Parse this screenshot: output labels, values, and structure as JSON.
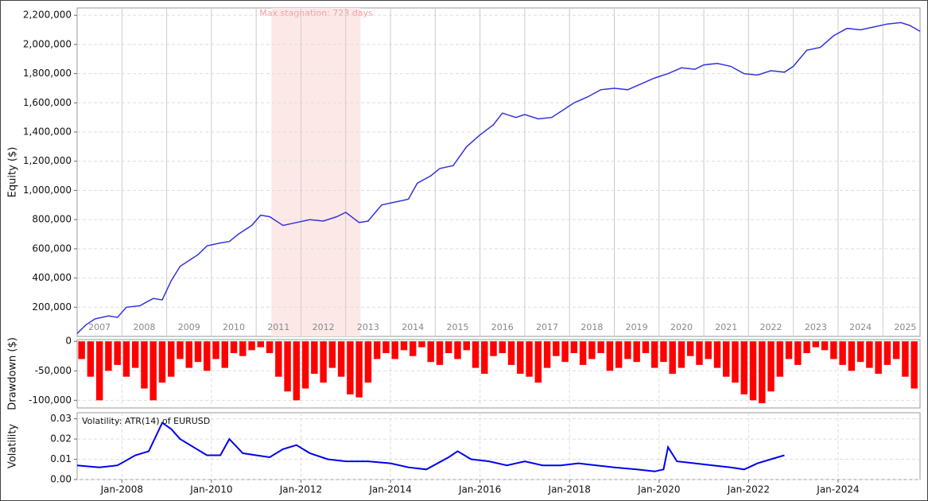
{
  "chart_data": [
    {
      "type": "line",
      "y_label": "Equity ($)",
      "x": [
        2007.0,
        2007.2,
        2007.4,
        2007.7,
        2007.9,
        2008.1,
        2008.4,
        2008.7,
        2008.9,
        2009.1,
        2009.3,
        2009.5,
        2009.7,
        2009.9,
        2010.2,
        2010.4,
        2010.6,
        2010.9,
        2011.1,
        2011.3,
        2011.6,
        2011.9,
        2012.2,
        2012.5,
        2012.8,
        2013.0,
        2013.3,
        2013.5,
        2013.8,
        2014.1,
        2014.4,
        2014.6,
        2014.9,
        2015.1,
        2015.4,
        2015.7,
        2016.0,
        2016.3,
        2016.5,
        2016.8,
        2017.0,
        2017.3,
        2017.6,
        2017.9,
        2018.1,
        2018.4,
        2018.7,
        2019.0,
        2019.3,
        2019.6,
        2019.9,
        2020.2,
        2020.5,
        2020.8,
        2021.0,
        2021.3,
        2021.6,
        2021.9,
        2022.2,
        2022.5,
        2022.8,
        2023.0,
        2023.3,
        2023.6,
        2023.9,
        2024.2,
        2024.5,
        2024.8,
        2025.1,
        2025.4,
        2025.6,
        2025.83
      ],
      "series": [
        {
          "name": "Equity",
          "color": "#3333dd",
          "values": [
            20000,
            80000,
            120000,
            140000,
            130000,
            200000,
            210000,
            260000,
            250000,
            380000,
            480000,
            520000,
            560000,
            620000,
            640000,
            650000,
            700000,
            760000,
            830000,
            820000,
            760000,
            780000,
            800000,
            790000,
            820000,
            850000,
            780000,
            790000,
            900000,
            920000,
            940000,
            1050000,
            1100000,
            1150000,
            1170000,
            1300000,
            1380000,
            1450000,
            1530000,
            1500000,
            1520000,
            1490000,
            1500000,
            1560000,
            1600000,
            1640000,
            1690000,
            1700000,
            1690000,
            1730000,
            1770000,
            1800000,
            1840000,
            1830000,
            1860000,
            1870000,
            1850000,
            1800000,
            1790000,
            1820000,
            1810000,
            1850000,
            1960000,
            1980000,
            2060000,
            2110000,
            2100000,
            2120000,
            2140000,
            2150000,
            2130000,
            2090000
          ]
        }
      ],
      "xlim": [
        2007.0,
        2025.83
      ],
      "xticks": [
        {
          "value": 2007,
          "label": "2007"
        },
        {
          "value": 2008,
          "label": "2008"
        },
        {
          "value": 2009,
          "label": "2009"
        },
        {
          "value": 2010,
          "label": "2010"
        },
        {
          "value": 2011,
          "label": "2011"
        },
        {
          "value": 2012,
          "label": "2012"
        },
        {
          "value": 2013,
          "label": "2013"
        },
        {
          "value": 2014,
          "label": "2014"
        },
        {
          "value": 2015,
          "label": "2015"
        },
        {
          "value": 2016,
          "label": "2016"
        },
        {
          "value": 2017,
          "label": "2017"
        },
        {
          "value": 2018,
          "label": "2018"
        },
        {
          "value": 2019,
          "label": "2019"
        },
        {
          "value": 2020,
          "label": "2020"
        },
        {
          "value": 2021,
          "label": "2021"
        },
        {
          "value": 2022,
          "label": "2022"
        },
        {
          "value": 2023,
          "label": "2023"
        },
        {
          "value": 2024,
          "label": "2024"
        },
        {
          "value": 2025,
          "label": "2025"
        }
      ],
      "ylim": [
        0,
        2250000
      ],
      "yticks": [
        {
          "value": 200000,
          "label": "200,000"
        },
        {
          "value": 400000,
          "label": "400,000"
        },
        {
          "value": 600000,
          "label": "600,000"
        },
        {
          "value": 800000,
          "label": "800,000"
        },
        {
          "value": 1000000,
          "label": "1,000,000"
        },
        {
          "value": 1200000,
          "label": "1,200,000"
        },
        {
          "value": 1400000,
          "label": "1,400,000"
        },
        {
          "value": 1600000,
          "label": "1,600,000"
        },
        {
          "value": 1800000,
          "label": "1,800,000"
        },
        {
          "value": 2000000,
          "label": "2,000,000"
        },
        {
          "value": 2200000,
          "label": "2,200,000"
        }
      ],
      "stagnation": {
        "label": "Max stagnation: 723 days",
        "start": 2011.34,
        "end": 2013.33
      }
    },
    {
      "type": "bar",
      "y_label": "Drawdown ($)",
      "x": [
        2007.1,
        2007.3,
        2007.5,
        2007.7,
        2007.9,
        2008.1,
        2008.3,
        2008.5,
        2008.7,
        2008.9,
        2009.1,
        2009.3,
        2009.5,
        2009.7,
        2009.9,
        2010.1,
        2010.3,
        2010.5,
        2010.7,
        2010.9,
        2011.1,
        2011.3,
        2011.5,
        2011.7,
        2011.9,
        2012.1,
        2012.3,
        2012.5,
        2012.7,
        2012.9,
        2013.1,
        2013.3,
        2013.5,
        2013.7,
        2013.9,
        2014.1,
        2014.3,
        2014.5,
        2014.7,
        2014.9,
        2015.1,
        2015.3,
        2015.5,
        2015.7,
        2015.9,
        2016.1,
        2016.3,
        2016.5,
        2016.7,
        2016.9,
        2017.1,
        2017.3,
        2017.5,
        2017.7,
        2017.9,
        2018.1,
        2018.3,
        2018.5,
        2018.7,
        2018.9,
        2019.1,
        2019.3,
        2019.5,
        2019.7,
        2019.9,
        2020.1,
        2020.3,
        2020.5,
        2020.7,
        2020.9,
        2021.1,
        2021.3,
        2021.5,
        2021.7,
        2021.9,
        2022.1,
        2022.3,
        2022.5,
        2022.7,
        2022.9,
        2023.1,
        2023.3,
        2023.5,
        2023.7,
        2023.9,
        2024.1,
        2024.3,
        2024.5,
        2024.7,
        2024.9,
        2025.1,
        2025.3,
        2025.5,
        2025.7
      ],
      "series": [
        {
          "name": "Drawdown",
          "color": "#ff0000",
          "values": [
            -30000,
            -60000,
            -100000,
            -50000,
            -40000,
            -60000,
            -45000,
            -80000,
            -100000,
            -70000,
            -60000,
            -30000,
            -45000,
            -35000,
            -50000,
            -30000,
            -45000,
            -20000,
            -25000,
            -15000,
            -10000,
            -20000,
            -60000,
            -85000,
            -100000,
            -80000,
            -55000,
            -70000,
            -45000,
            -60000,
            -90000,
            -95000,
            -70000,
            -30000,
            -20000,
            -30000,
            -15000,
            -25000,
            -10000,
            -35000,
            -40000,
            -20000,
            -30000,
            -15000,
            -45000,
            -55000,
            -25000,
            -20000,
            -40000,
            -55000,
            -60000,
            -70000,
            -45000,
            -25000,
            -35000,
            -20000,
            -40000,
            -30000,
            -20000,
            -50000,
            -45000,
            -30000,
            -35000,
            -20000,
            -45000,
            -35000,
            -55000,
            -45000,
            -25000,
            -40000,
            -30000,
            -45000,
            -60000,
            -70000,
            -90000,
            -100000,
            -105000,
            -85000,
            -60000,
            -30000,
            -40000,
            -20000,
            -10000,
            -15000,
            -30000,
            -40000,
            -50000,
            -35000,
            -45000,
            -55000,
            -40000,
            -30000,
            -60000,
            -80000
          ]
        }
      ],
      "xlim": [
        2007.0,
        2025.83
      ],
      "ylim": [
        -113000,
        3000
      ],
      "yticks": [
        0,
        {
          "value": -50000,
          "label": "-50,000"
        },
        {
          "value": -100000,
          "label": "-100,000"
        }
      ]
    },
    {
      "type": "line",
      "y_label": "Volatility",
      "annotation": "Volatility: ATR(14) of EURUSD",
      "x": [
        2007.0,
        2007.5,
        2007.9,
        2008.3,
        2008.6,
        2008.9,
        2009.1,
        2009.3,
        2009.6,
        2009.9,
        2010.2,
        2010.4,
        2010.7,
        2011.0,
        2011.3,
        2011.6,
        2011.9,
        2012.2,
        2012.6,
        2013.0,
        2013.5,
        2014.0,
        2014.4,
        2014.8,
        2015.3,
        2015.5,
        2015.8,
        2016.2,
        2016.6,
        2017.0,
        2017.4,
        2017.8,
        2018.2,
        2018.6,
        2019.0,
        2019.5,
        2019.9,
        2020.1,
        2020.2,
        2020.4,
        2020.8,
        2021.2,
        2021.6,
        2021.9,
        2022.2,
        2022.5,
        2022.8
      ],
      "series": [
        {
          "name": "ATR",
          "color": "#0000ee",
          "values": [
            0.007,
            0.006,
            0.007,
            0.012,
            0.014,
            0.028,
            0.025,
            0.02,
            0.016,
            0.012,
            0.012,
            0.02,
            0.013,
            0.012,
            0.011,
            0.015,
            0.017,
            0.013,
            0.01,
            0.009,
            0.009,
            0.008,
            0.006,
            0.005,
            0.011,
            0.014,
            0.01,
            0.009,
            0.007,
            0.009,
            0.007,
            0.007,
            0.008,
            0.007,
            0.006,
            0.005,
            0.004,
            0.005,
            0.016,
            0.009,
            0.008,
            0.007,
            0.006,
            0.005,
            0.008,
            0.01,
            0.012
          ]
        }
      ],
      "xlim": [
        2007.0,
        2025.83
      ],
      "xticks": [
        {
          "value": 2008,
          "label": "Jan-2008"
        },
        {
          "value": 2010,
          "label": "Jan-2010"
        },
        {
          "value": 2012,
          "label": "Jan-2012"
        },
        {
          "value": 2014,
          "label": "Jan-2014"
        },
        {
          "value": 2016,
          "label": "Jan-2016"
        },
        {
          "value": 2018,
          "label": "Jan-2018"
        },
        {
          "value": 2020,
          "label": "Jan-2020"
        },
        {
          "value": 2022,
          "label": "Jan-2022"
        },
        {
          "value": 2024,
          "label": "Jan-2024"
        }
      ],
      "ylim": [
        0,
        0.033
      ],
      "yticks": [
        {
          "value": 0,
          "label": "0.00"
        },
        {
          "value": 0.01,
          "label": "0.01"
        },
        {
          "value": 0.02,
          "label": "0.02"
        },
        {
          "value": 0.03,
          "label": "0.03"
        }
      ]
    }
  ]
}
